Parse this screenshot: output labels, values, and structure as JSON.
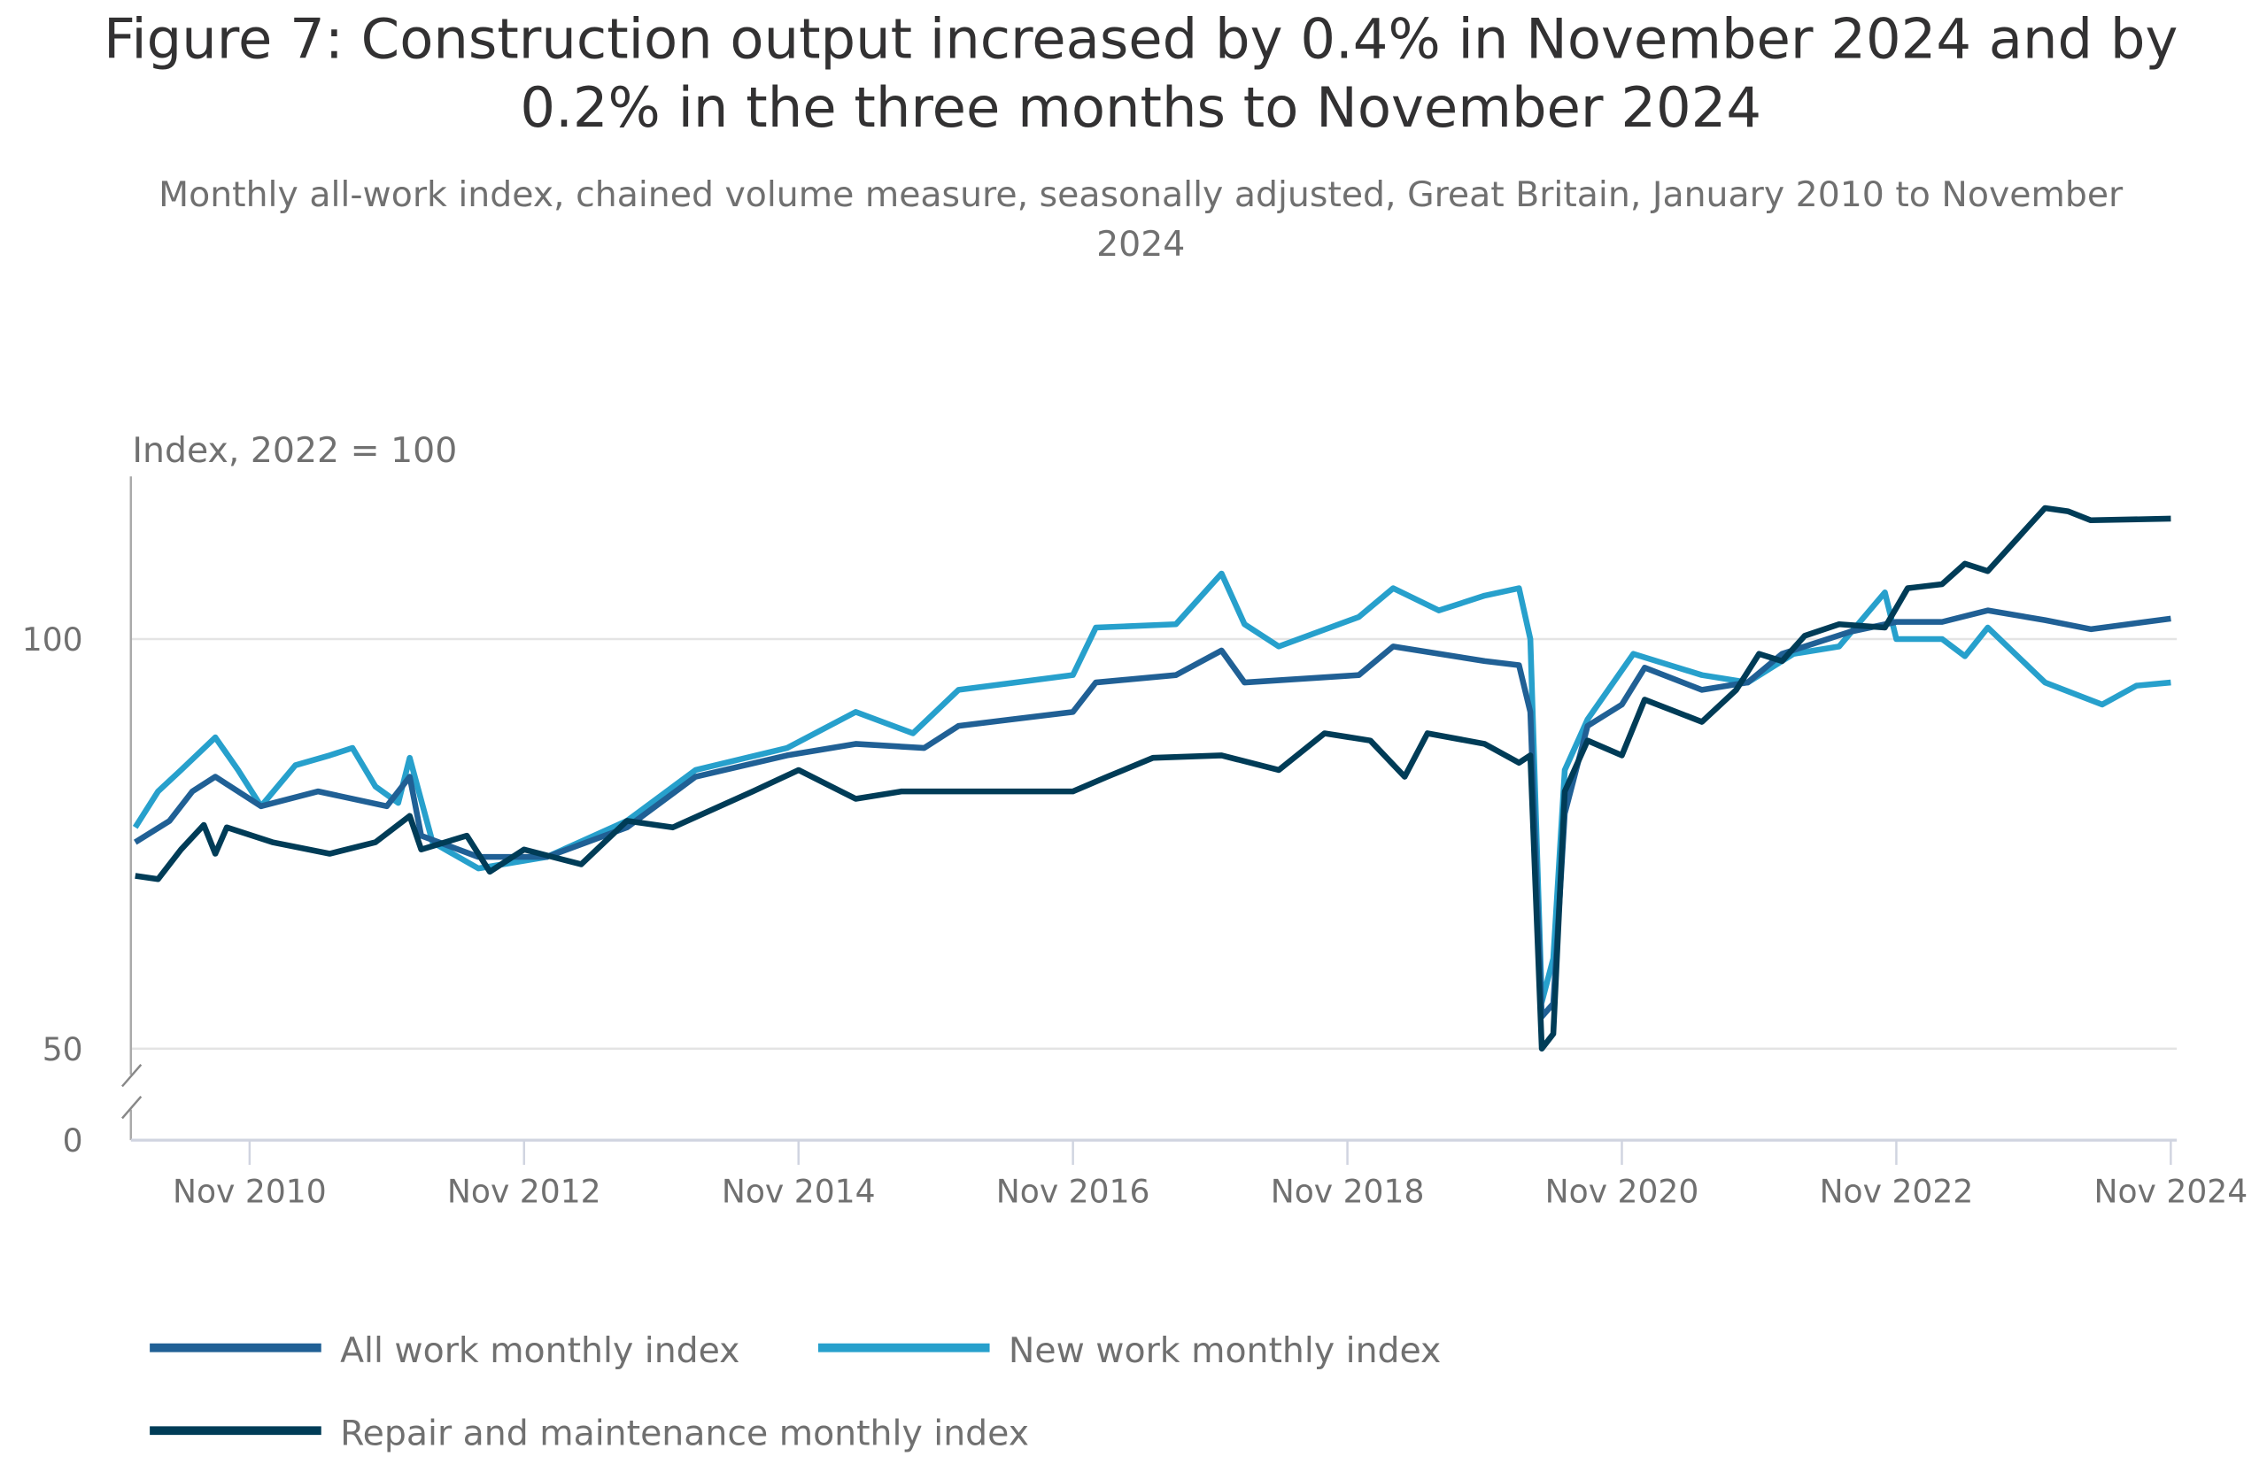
{
  "chart_data": {
    "type": "line",
    "title": "Figure 7: Construction output increased by 0.4% in November 2024 and by 0.2% in the three months to November 2024",
    "title_lines": [
      "Figure 7: Construction output increased by 0.4% in November 2024 and by",
      "0.2% in the three months to November 2024"
    ],
    "subtitle": "Monthly all-work index, chained volume measure, seasonally adjusted, Great Britain, January 2010 to November 2024",
    "subtitle_lines": [
      "Monthly all-work index, chained volume measure, seasonally adjusted, Great Britain, January 2010 to November",
      "2024"
    ],
    "ylabel": "Index, 2022 = 100",
    "xlabel": "",
    "xlim": [
      "2010-01",
      "2024-11"
    ],
    "ylim": [
      0,
      120
    ],
    "axis_break": [
      0,
      50
    ],
    "yticks": [
      0,
      50,
      100
    ],
    "xticks": [
      {
        "date": "2010-11",
        "label": "Nov 2010"
      },
      {
        "date": "2012-11",
        "label": "Nov 2012"
      },
      {
        "date": "2014-11",
        "label": "Nov 2014"
      },
      {
        "date": "2016-11",
        "label": "Nov 2016"
      },
      {
        "date": "2018-11",
        "label": "Nov 2018"
      },
      {
        "date": "2020-11",
        "label": "Nov 2020"
      },
      {
        "date": "2022-11",
        "label": "Nov 2022"
      },
      {
        "date": "2024-11",
        "label": "Nov 2024"
      }
    ],
    "grid": "horizontal",
    "legend_position": "bottom",
    "series": [
      {
        "name": "All work monthly index",
        "color": "#206095",
        "points": [
          [
            "2010-01",
            75.2
          ],
          [
            "2010-04",
            77.8
          ],
          [
            "2010-06",
            81.4
          ],
          [
            "2010-08",
            83.2
          ],
          [
            "2010-12",
            79.6
          ],
          [
            "2011-05",
            81.4
          ],
          [
            "2011-11",
            79.6
          ],
          [
            "2012-01",
            83.2
          ],
          [
            "2012-02",
            76
          ],
          [
            "2012-07",
            73.4
          ],
          [
            "2013-01",
            73.4
          ],
          [
            "2013-08",
            77
          ],
          [
            "2014-02",
            83.2
          ],
          [
            "2014-10",
            85.8
          ],
          [
            "2015-04",
            87.2
          ],
          [
            "2015-10",
            86.7
          ],
          [
            "2016-01",
            89.4
          ],
          [
            "2016-11",
            91.1
          ],
          [
            "2017-01",
            94.7
          ],
          [
            "2017-08",
            95.6
          ],
          [
            "2017-12",
            98.6
          ],
          [
            "2018-02",
            94.7
          ],
          [
            "2018-12",
            95.6
          ],
          [
            "2019-03",
            99.1
          ],
          [
            "2019-11",
            97.3
          ],
          [
            "2020-02",
            96.8
          ],
          [
            "2020-03",
            91.1
          ],
          [
            "2020-04",
            53.9
          ],
          [
            "2020-05",
            55.5
          ],
          [
            "2020-06",
            78.7
          ],
          [
            "2020-08",
            89.4
          ],
          [
            "2020-11",
            92
          ],
          [
            "2021-01",
            96.5
          ],
          [
            "2021-06",
            93.8
          ],
          [
            "2021-10",
            94.7
          ],
          [
            "2022-01",
            98.2
          ],
          [
            "2022-07",
            100.9
          ],
          [
            "2022-11",
            102.1
          ],
          [
            "2023-03",
            102.1
          ],
          [
            "2023-07",
            103.5
          ],
          [
            "2023-12",
            102.3
          ],
          [
            "2024-04",
            101.2
          ],
          [
            "2024-11",
            102.5
          ]
        ]
      },
      {
        "name": "New work monthly index",
        "color": "#27a0cc",
        "points": [
          [
            "2010-01",
            77
          ],
          [
            "2010-03",
            81.4
          ],
          [
            "2010-05",
            84
          ],
          [
            "2010-08",
            88
          ],
          [
            "2010-10",
            84
          ],
          [
            "2010-12",
            79.6
          ],
          [
            "2011-03",
            84.6
          ],
          [
            "2011-06",
            85.8
          ],
          [
            "2011-08",
            86.7
          ],
          [
            "2011-10",
            82
          ],
          [
            "2011-12",
            80
          ],
          [
            "2012-01",
            85.5
          ],
          [
            "2012-03",
            75.2
          ],
          [
            "2012-07",
            72
          ],
          [
            "2013-01",
            73.4
          ],
          [
            "2013-08",
            77.8
          ],
          [
            "2014-02",
            84
          ],
          [
            "2014-10",
            86.7
          ],
          [
            "2015-04",
            91.1
          ],
          [
            "2015-09",
            88.5
          ],
          [
            "2016-01",
            93.8
          ],
          [
            "2016-11",
            95.6
          ],
          [
            "2017-01",
            101.4
          ],
          [
            "2017-08",
            101.8
          ],
          [
            "2017-12",
            108
          ],
          [
            "2018-02",
            101.8
          ],
          [
            "2018-05",
            99.1
          ],
          [
            "2018-12",
            102.7
          ],
          [
            "2019-03",
            106.2
          ],
          [
            "2019-07",
            103.5
          ],
          [
            "2019-11",
            105.3
          ],
          [
            "2020-02",
            106.2
          ],
          [
            "2020-03",
            100
          ],
          [
            "2020-04",
            55.7
          ],
          [
            "2020-05",
            61
          ],
          [
            "2020-06",
            84
          ],
          [
            "2020-08",
            90.2
          ],
          [
            "2020-12",
            98.2
          ],
          [
            "2021-06",
            95.6
          ],
          [
            "2021-10",
            94.7
          ],
          [
            "2022-02",
            98.2
          ],
          [
            "2022-06",
            99.1
          ],
          [
            "2022-10",
            105.7
          ],
          [
            "2022-11",
            100
          ],
          [
            "2023-03",
            100
          ],
          [
            "2023-05",
            97.9
          ],
          [
            "2023-07",
            101.4
          ],
          [
            "2023-12",
            94.7
          ],
          [
            "2024-05",
            92
          ],
          [
            "2024-08",
            94.3
          ],
          [
            "2024-11",
            94.7
          ]
        ]
      },
      {
        "name": "Repair and maintenance monthly index",
        "color": "#003c57",
        "points": [
          [
            "2010-01",
            71.1
          ],
          [
            "2010-03",
            70.7
          ],
          [
            "2010-05",
            74.3
          ],
          [
            "2010-07",
            77.3
          ],
          [
            "2010-08",
            73.8
          ],
          [
            "2010-09",
            77
          ],
          [
            "2011-01",
            75.2
          ],
          [
            "2011-06",
            73.8
          ],
          [
            "2011-10",
            75.2
          ],
          [
            "2012-01",
            78.4
          ],
          [
            "2012-02",
            74.3
          ],
          [
            "2012-06",
            76
          ],
          [
            "2012-08",
            71.6
          ],
          [
            "2012-11",
            74.3
          ],
          [
            "2013-04",
            72.5
          ],
          [
            "2013-08",
            77.8
          ],
          [
            "2013-12",
            77
          ],
          [
            "2014-07",
            81.4
          ],
          [
            "2014-11",
            84
          ],
          [
            "2015-04",
            80.5
          ],
          [
            "2015-08",
            81.4
          ],
          [
            "2016-03",
            81.4
          ],
          [
            "2016-11",
            81.4
          ],
          [
            "2017-02",
            83.2
          ],
          [
            "2017-06",
            85.5
          ],
          [
            "2017-12",
            85.8
          ],
          [
            "2018-05",
            84
          ],
          [
            "2018-09",
            88.5
          ],
          [
            "2019-01",
            87.6
          ],
          [
            "2019-04",
            83.2
          ],
          [
            "2019-06",
            88.5
          ],
          [
            "2019-11",
            87.2
          ],
          [
            "2020-02",
            84.9
          ],
          [
            "2020-03",
            85.8
          ],
          [
            "2020-04",
            50
          ],
          [
            "2020-05",
            51.8
          ],
          [
            "2020-06",
            81.4
          ],
          [
            "2020-08",
            87.6
          ],
          [
            "2020-11",
            85.8
          ],
          [
            "2021-01",
            92.6
          ],
          [
            "2021-06",
            89.9
          ],
          [
            "2021-09",
            93.8
          ],
          [
            "2021-11",
            98.2
          ],
          [
            "2022-01",
            97.3
          ],
          [
            "2022-03",
            100.4
          ],
          [
            "2022-06",
            101.8
          ],
          [
            "2022-10",
            101.4
          ],
          [
            "2022-12",
            106.2
          ],
          [
            "2023-03",
            106.7
          ],
          [
            "2023-05",
            109.2
          ],
          [
            "2023-07",
            108.3
          ],
          [
            "2023-12",
            116
          ],
          [
            "2024-02",
            115.6
          ],
          [
            "2024-04",
            114.5
          ],
          [
            "2024-11",
            114.7
          ]
        ]
      }
    ]
  }
}
